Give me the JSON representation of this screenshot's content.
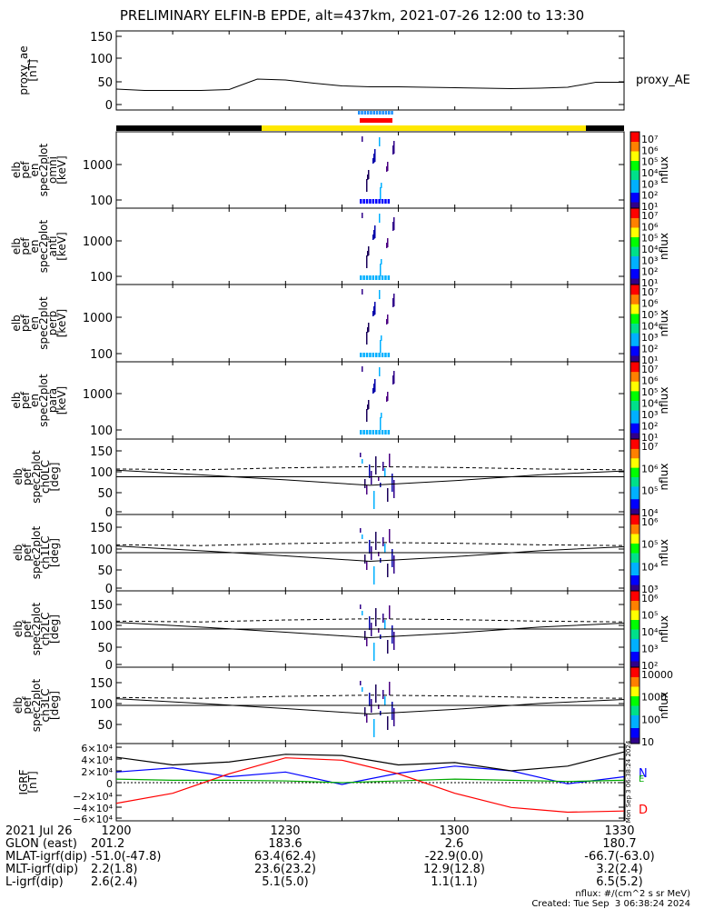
{
  "header": {
    "title": "PRELIMINARY ELFIN-B EPDE, alt=437km, 2021-07-26 12:00 to 13:30"
  },
  "panels": [
    {
      "ylabel": [
        "proxy_ae",
        "[nT]"
      ],
      "right_label": "proxy_AE",
      "ticks": [
        "150",
        "100",
        "50",
        "0"
      ]
    },
    {
      "ylabel": [
        "elb",
        "pef",
        "en",
        "spec2plot",
        "omni",
        "[keV]"
      ],
      "ticks": [
        "1000",
        "100"
      ],
      "cbar_label": "nflux",
      "cbar_ticks": [
        "10⁷",
        "10⁶",
        "10⁵",
        "10⁴",
        "10³",
        "10²",
        "10¹"
      ]
    },
    {
      "ylabel": [
        "elb",
        "pef",
        "en",
        "spec2plot",
        "anti",
        "[keV]"
      ],
      "ticks": [
        "1000",
        "100"
      ],
      "cbar_label": "nflux",
      "cbar_ticks": [
        "10⁷",
        "10⁶",
        "10⁵",
        "10⁴",
        "10³",
        "10²",
        "10¹"
      ]
    },
    {
      "ylabel": [
        "elb",
        "pef",
        "en",
        "spec2plot",
        "perp",
        "[keV]"
      ],
      "ticks": [
        "1000",
        "100"
      ],
      "cbar_label": "nflux",
      "cbar_ticks": [
        "10⁷",
        "10⁶",
        "10⁵",
        "10⁴",
        "10³",
        "10²",
        "10¹"
      ]
    },
    {
      "ylabel": [
        "elb",
        "pef",
        "en",
        "spec2plot",
        "para",
        "[keV]"
      ],
      "ticks": [
        "1000",
        "100"
      ],
      "cbar_label": "nflux",
      "cbar_ticks": [
        "10⁷",
        "10⁶",
        "10⁵",
        "10⁴",
        "10³",
        "10²",
        "10¹"
      ]
    },
    {
      "ylabel": [
        "elb",
        "pef",
        "spec2plot",
        "ch0LC",
        "[deg]"
      ],
      "ticks": [
        "150",
        "100",
        "50",
        "0"
      ],
      "cbar_label": "nflux",
      "cbar_ticks": [
        "10⁷",
        "10⁶",
        "10⁵",
        "10⁴"
      ]
    },
    {
      "ylabel": [
        "elb",
        "pef",
        "spec2plot",
        "ch1LC",
        "[deg]"
      ],
      "ticks": [
        "150",
        "100",
        "50",
        "0"
      ],
      "cbar_label": "nflux",
      "cbar_ticks": [
        "10⁶",
        "10⁵",
        "10⁴",
        "10³"
      ]
    },
    {
      "ylabel": [
        "elb",
        "pef",
        "spec2plot",
        "ch2LC",
        "[deg]"
      ],
      "ticks": [
        "150",
        "100",
        "50",
        "0"
      ],
      "cbar_label": "nflux",
      "cbar_ticks": [
        "10⁶",
        "10⁵",
        "10⁴",
        "10³",
        "10²"
      ]
    },
    {
      "ylabel": [
        "elb",
        "pef",
        "spec2plot",
        "ch3LC",
        "[deg]"
      ],
      "ticks": [
        "150",
        "100",
        "50"
      ],
      "cbar_label": "nflux",
      "cbar_ticks": [
        "10000",
        "1000",
        "100",
        "10"
      ]
    },
    {
      "ylabel": [
        "IGRF",
        "[nT]"
      ],
      "ticks": [
        "6×10⁴",
        "4×10⁴",
        "2×10⁴",
        "0",
        "−2×10⁴",
        "−4×10⁴",
        "−6×10⁴"
      ],
      "right_labels": [
        "N",
        "E",
        "D"
      ],
      "side_text": "Mon Sep  3 06:38:24 2024"
    }
  ],
  "footer": {
    "rows": [
      {
        "label": "2021 Jul 26",
        "values": [
          "1200",
          "1230",
          "1300",
          "1330"
        ]
      },
      {
        "label": "GLON (east)",
        "values": [
          "201.2",
          "183.6",
          "2.6",
          "180.7"
        ]
      },
      {
        "label": "MLAT-igrf(dip)",
        "values": [
          "-51.0(-47.8)",
          "63.4(62.4)",
          "-22.9(0.0)",
          "-66.7(-63.0)"
        ]
      },
      {
        "label": "MLT-igrf(dip)",
        "values": [
          "2.2(1.8)",
          "23.6(23.2)",
          "12.9(12.8)",
          "3.2(2.4)"
        ]
      },
      {
        "label": "L-igrf(dip)",
        "values": [
          "2.6(2.4)",
          "5.1(5.0)",
          "1.1(1.1)",
          "6.5(5.2)"
        ]
      }
    ],
    "unit_note": "nflux: #/(cm^2 s sr MeV)",
    "created": "Created: Tue Sep  3 06:38:24 2024"
  },
  "colors": {
    "status_yellow": "#ffe800",
    "status_black": "#000000",
    "marker_red": "#ff0000",
    "marker_blue": "#1e90ff",
    "field_N": "#0000ff",
    "field_E": "#00aa00",
    "field_D": "#ff0000"
  },
  "chart_data": {
    "type": "line",
    "x_range": [
      "12:00",
      "13:30"
    ],
    "x_ticks": [
      "1200",
      "1230",
      "1300",
      "1330"
    ],
    "proxy_ae": {
      "x": [
        "12:00",
        "12:05",
        "12:10",
        "12:15",
        "12:20",
        "12:25",
        "12:30",
        "12:35",
        "12:40",
        "12:45",
        "12:50",
        "12:55",
        "13:00",
        "13:05",
        "13:10",
        "13:15",
        "13:20",
        "13:25",
        "13:30"
      ],
      "values": [
        34,
        31,
        31,
        31,
        33,
        56,
        54,
        47,
        41,
        39,
        39,
        38,
        37,
        36,
        35,
        36,
        38,
        49,
        49
      ],
      "ylim": [
        0,
        150
      ]
    },
    "igrf": {
      "ylim": [
        -60000,
        60000
      ],
      "series": [
        {
          "name": "N",
          "x": [
            "12:00",
            "12:10",
            "12:20",
            "12:30",
            "12:40",
            "12:50",
            "13:00",
            "13:10",
            "13:20",
            "13:30"
          ],
          "values": [
            18000,
            25000,
            10000,
            18000,
            -3000,
            16000,
            28000,
            20000,
            -2000,
            10000
          ]
        },
        {
          "name": "E",
          "x": [
            "12:00",
            "12:10",
            "12:20",
            "12:30",
            "12:40",
            "12:50",
            "13:00",
            "13:10",
            "13:20",
            "13:30"
          ],
          "values": [
            6000,
            4000,
            4000,
            3000,
            0,
            3000,
            6000,
            4000,
            2000,
            4000
          ]
        },
        {
          "name": "D",
          "x": [
            "12:00",
            "12:10",
            "12:20",
            "12:30",
            "12:40",
            "12:50",
            "13:00",
            "13:10",
            "13:20",
            "13:30"
          ],
          "values": [
            -35000,
            -18000,
            15000,
            42000,
            38000,
            15000,
            -18000,
            -42000,
            -50000,
            -48000
          ]
        }
      ],
      "total": {
        "x": [
          "12:00",
          "12:10",
          "12:20",
          "12:30",
          "12:40",
          "12:50",
          "13:00",
          "13:10",
          "13:20",
          "13:30"
        ],
        "values": [
          43000,
          30000,
          35000,
          48000,
          46000,
          30000,
          34000,
          20000,
          28000,
          52000
        ]
      }
    },
    "loss_cone": {
      "x": [
        "12:00",
        "12:15",
        "12:30",
        "12:45",
        "13:00",
        "13:15",
        "13:30"
      ],
      "solid": [
        107,
        95,
        82,
        68,
        80,
        95,
        105
      ],
      "dashed": [
        110,
        108,
        113,
        116,
        114,
        110,
        108
      ],
      "ylim": [
        0,
        180
      ]
    }
  }
}
